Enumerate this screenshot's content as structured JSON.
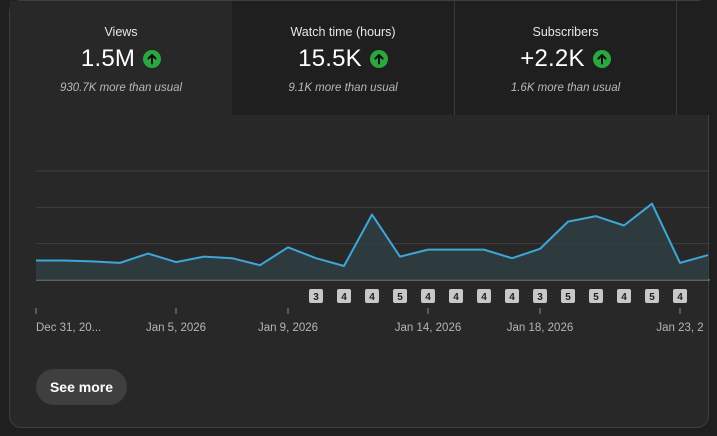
{
  "tabs": [
    {
      "label": "Views",
      "value": "1.5M",
      "trend": "up",
      "sub": "930.7K more than usual",
      "active": true
    },
    {
      "label": "Watch time (hours)",
      "value": "15.5K",
      "trend": "up",
      "sub": "9.1K more than usual",
      "active": false
    },
    {
      "label": "Subscribers",
      "value": "+2.2K",
      "trend": "up",
      "sub": "1.6K more than usual",
      "active": false
    }
  ],
  "chart_data": {
    "type": "area",
    "title": "Views",
    "x_tick_labels": [
      "Dec 31, 20...",
      "Jan 5, 2026",
      "Jan 9, 2026",
      "Jan 14, 2026",
      "Jan 18, 2026",
      "Jan 23, 2"
    ],
    "x_tick_day_index": [
      0,
      5,
      9,
      14,
      18,
      23
    ],
    "values": [
      25,
      25,
      24,
      22,
      34,
      23,
      30,
      28,
      19,
      42,
      28,
      18,
      84,
      30,
      39,
      39,
      39,
      28,
      40,
      75,
      82,
      70,
      98,
      22,
      32
    ],
    "ylim": [
      0,
      140
    ],
    "gridlines": 4,
    "published_markers": [
      {
        "day": 10,
        "count": "3"
      },
      {
        "day": 11,
        "count": "4"
      },
      {
        "day": 12,
        "count": "4"
      },
      {
        "day": 13,
        "count": "5"
      },
      {
        "day": 14,
        "count": "4"
      },
      {
        "day": 15,
        "count": "4"
      },
      {
        "day": 16,
        "count": "4"
      },
      {
        "day": 17,
        "count": "4"
      },
      {
        "day": 18,
        "count": "3"
      },
      {
        "day": 19,
        "count": "5"
      },
      {
        "day": 20,
        "count": "5"
      },
      {
        "day": 21,
        "count": "4"
      },
      {
        "day": 22,
        "count": "5"
      },
      {
        "day": 23,
        "count": "4"
      }
    ]
  },
  "colors": {
    "line": "#3ea6d8",
    "up": "#2ba640",
    "grid": "#3f3f3f"
  },
  "see_more_label": "See more"
}
